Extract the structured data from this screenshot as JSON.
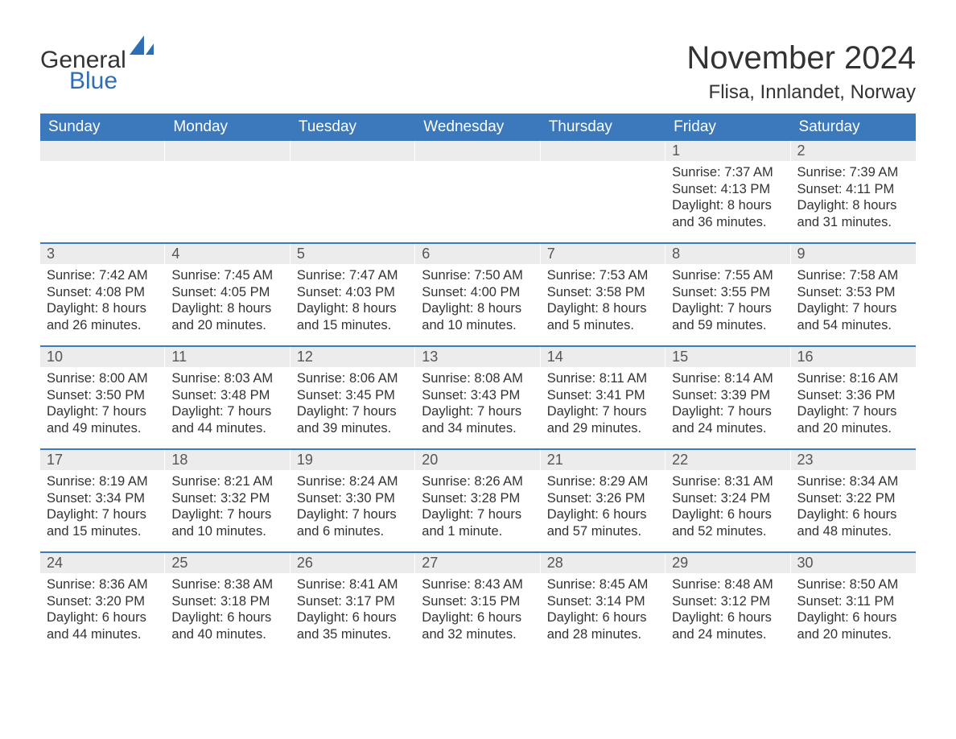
{
  "logo": {
    "part1": "General",
    "part2": "Blue"
  },
  "title": "November 2024",
  "location": "Flisa, Innlandet, Norway",
  "colors": {
    "header_bg": "#3b78bc",
    "header_text": "#ffffff",
    "daynum_bg": "#ececec",
    "divider": "#3b78bc",
    "text": "#333333",
    "logo_blue": "#2f6eb5"
  },
  "weekdays": [
    "Sunday",
    "Monday",
    "Tuesday",
    "Wednesday",
    "Thursday",
    "Friday",
    "Saturday"
  ],
  "weeks": [
    [
      null,
      null,
      null,
      null,
      null,
      {
        "n": "1",
        "sunrise": "7:37 AM",
        "sunset": "4:13 PM",
        "dl1": "Daylight: 8 hours",
        "dl2": "and 36 minutes."
      },
      {
        "n": "2",
        "sunrise": "7:39 AM",
        "sunset": "4:11 PM",
        "dl1": "Daylight: 8 hours",
        "dl2": "and 31 minutes."
      }
    ],
    [
      {
        "n": "3",
        "sunrise": "7:42 AM",
        "sunset": "4:08 PM",
        "dl1": "Daylight: 8 hours",
        "dl2": "and 26 minutes."
      },
      {
        "n": "4",
        "sunrise": "7:45 AM",
        "sunset": "4:05 PM",
        "dl1": "Daylight: 8 hours",
        "dl2": "and 20 minutes."
      },
      {
        "n": "5",
        "sunrise": "7:47 AM",
        "sunset": "4:03 PM",
        "dl1": "Daylight: 8 hours",
        "dl2": "and 15 minutes."
      },
      {
        "n": "6",
        "sunrise": "7:50 AM",
        "sunset": "4:00 PM",
        "dl1": "Daylight: 8 hours",
        "dl2": "and 10 minutes."
      },
      {
        "n": "7",
        "sunrise": "7:53 AM",
        "sunset": "3:58 PM",
        "dl1": "Daylight: 8 hours",
        "dl2": "and 5 minutes."
      },
      {
        "n": "8",
        "sunrise": "7:55 AM",
        "sunset": "3:55 PM",
        "dl1": "Daylight: 7 hours",
        "dl2": "and 59 minutes."
      },
      {
        "n": "9",
        "sunrise": "7:58 AM",
        "sunset": "3:53 PM",
        "dl1": "Daylight: 7 hours",
        "dl2": "and 54 minutes."
      }
    ],
    [
      {
        "n": "10",
        "sunrise": "8:00 AM",
        "sunset": "3:50 PM",
        "dl1": "Daylight: 7 hours",
        "dl2": "and 49 minutes."
      },
      {
        "n": "11",
        "sunrise": "8:03 AM",
        "sunset": "3:48 PM",
        "dl1": "Daylight: 7 hours",
        "dl2": "and 44 minutes."
      },
      {
        "n": "12",
        "sunrise": "8:06 AM",
        "sunset": "3:45 PM",
        "dl1": "Daylight: 7 hours",
        "dl2": "and 39 minutes."
      },
      {
        "n": "13",
        "sunrise": "8:08 AM",
        "sunset": "3:43 PM",
        "dl1": "Daylight: 7 hours",
        "dl2": "and 34 minutes."
      },
      {
        "n": "14",
        "sunrise": "8:11 AM",
        "sunset": "3:41 PM",
        "dl1": "Daylight: 7 hours",
        "dl2": "and 29 minutes."
      },
      {
        "n": "15",
        "sunrise": "8:14 AM",
        "sunset": "3:39 PM",
        "dl1": "Daylight: 7 hours",
        "dl2": "and 24 minutes."
      },
      {
        "n": "16",
        "sunrise": "8:16 AM",
        "sunset": "3:36 PM",
        "dl1": "Daylight: 7 hours",
        "dl2": "and 20 minutes."
      }
    ],
    [
      {
        "n": "17",
        "sunrise": "8:19 AM",
        "sunset": "3:34 PM",
        "dl1": "Daylight: 7 hours",
        "dl2": "and 15 minutes."
      },
      {
        "n": "18",
        "sunrise": "8:21 AM",
        "sunset": "3:32 PM",
        "dl1": "Daylight: 7 hours",
        "dl2": "and 10 minutes."
      },
      {
        "n": "19",
        "sunrise": "8:24 AM",
        "sunset": "3:30 PM",
        "dl1": "Daylight: 7 hours",
        "dl2": "and 6 minutes."
      },
      {
        "n": "20",
        "sunrise": "8:26 AM",
        "sunset": "3:28 PM",
        "dl1": "Daylight: 7 hours",
        "dl2": "and 1 minute."
      },
      {
        "n": "21",
        "sunrise": "8:29 AM",
        "sunset": "3:26 PM",
        "dl1": "Daylight: 6 hours",
        "dl2": "and 57 minutes."
      },
      {
        "n": "22",
        "sunrise": "8:31 AM",
        "sunset": "3:24 PM",
        "dl1": "Daylight: 6 hours",
        "dl2": "and 52 minutes."
      },
      {
        "n": "23",
        "sunrise": "8:34 AM",
        "sunset": "3:22 PM",
        "dl1": "Daylight: 6 hours",
        "dl2": "and 48 minutes."
      }
    ],
    [
      {
        "n": "24",
        "sunrise": "8:36 AM",
        "sunset": "3:20 PM",
        "dl1": "Daylight: 6 hours",
        "dl2": "and 44 minutes."
      },
      {
        "n": "25",
        "sunrise": "8:38 AM",
        "sunset": "3:18 PM",
        "dl1": "Daylight: 6 hours",
        "dl2": "and 40 minutes."
      },
      {
        "n": "26",
        "sunrise": "8:41 AM",
        "sunset": "3:17 PM",
        "dl1": "Daylight: 6 hours",
        "dl2": "and 35 minutes."
      },
      {
        "n": "27",
        "sunrise": "8:43 AM",
        "sunset": "3:15 PM",
        "dl1": "Daylight: 6 hours",
        "dl2": "and 32 minutes."
      },
      {
        "n": "28",
        "sunrise": "8:45 AM",
        "sunset": "3:14 PM",
        "dl1": "Daylight: 6 hours",
        "dl2": "and 28 minutes."
      },
      {
        "n": "29",
        "sunrise": "8:48 AM",
        "sunset": "3:12 PM",
        "dl1": "Daylight: 6 hours",
        "dl2": "and 24 minutes."
      },
      {
        "n": "30",
        "sunrise": "8:50 AM",
        "sunset": "3:11 PM",
        "dl1": "Daylight: 6 hours",
        "dl2": "and 20 minutes."
      }
    ]
  ],
  "labels": {
    "sunrise": "Sunrise: ",
    "sunset": "Sunset: "
  }
}
